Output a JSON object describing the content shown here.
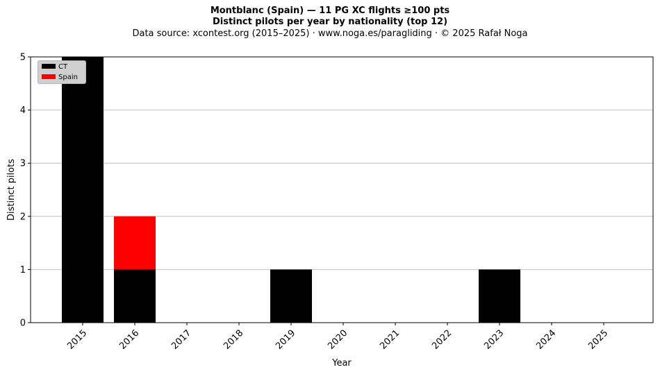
{
  "chart_data": {
    "type": "bar",
    "stacked": true,
    "title": "Montblanc (Spain)  —  11 PG XC flights ≥100 pts",
    "subtitle": "Distinct pilots per year by nationality (top 12)",
    "source_note": "Data source: xcontest.org (2015–2025)  ·  www.noga.es/paragliding  ·  © 2025 Rafał Noga",
    "xlabel": "Year",
    "ylabel": "Distinct pilots",
    "categories": [
      "2015",
      "2016",
      "2017",
      "2018",
      "2019",
      "2020",
      "2021",
      "2022",
      "2023",
      "2024",
      "2025"
    ],
    "ylim": [
      0,
      5
    ],
    "yticks": [
      "0",
      "1",
      "2",
      "3",
      "4",
      "5"
    ],
    "grid": "horizontal",
    "legend_position": "top-left",
    "series": [
      {
        "name": "CT",
        "color": "#000000",
        "values": [
          5,
          1,
          0,
          0,
          1,
          0,
          0,
          0,
          1,
          0,
          0
        ]
      },
      {
        "name": "Spain",
        "color": "#ff0000",
        "values": [
          0,
          1,
          0,
          0,
          0,
          0,
          0,
          0,
          0,
          0,
          0
        ]
      }
    ]
  }
}
